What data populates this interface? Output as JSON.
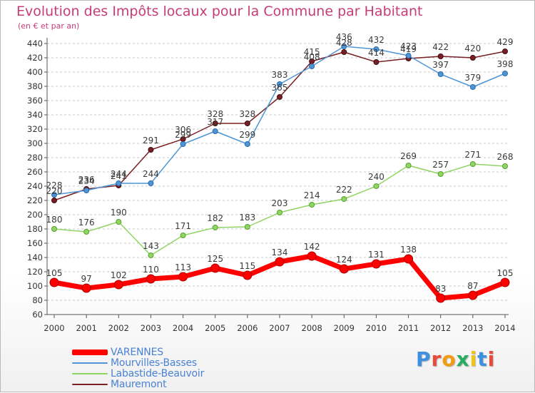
{
  "chart_data": {
    "type": "line",
    "title": "Evolution des Impôts locaux pour la Commune par Habitant",
    "subtitle": "(en € et par an)",
    "xlabel": "",
    "ylabel": "",
    "categories": [
      "2000",
      "2001",
      "2002",
      "2003",
      "2004",
      "2005",
      "2006",
      "2007",
      "2008",
      "2009",
      "2010",
      "2011",
      "2012",
      "2013",
      "2014"
    ],
    "ylim": [
      60,
      440
    ],
    "ytick_step": 20,
    "grid": "y dashed",
    "legend_position": "bottom-left",
    "series": [
      {
        "name": "VARENNES",
        "color": "#ff0000",
        "values": [
          105,
          97,
          102,
          110,
          113,
          125,
          115,
          134,
          142,
          124,
          131,
          138,
          83,
          87,
          105
        ]
      },
      {
        "name": "Mourvilles-Basses",
        "color": "#4f95d6",
        "values": [
          228,
          234,
          244,
          244,
          299,
          317,
          299,
          383,
          408,
          436,
          432,
          423,
          397,
          379,
          398
        ]
      },
      {
        "name": "Labastide-Beauvoir",
        "color": "#8fd563",
        "values": [
          180,
          176,
          190,
          143,
          171,
          182,
          183,
          203,
          214,
          222,
          240,
          269,
          257,
          271,
          268
        ]
      },
      {
        "name": "Mauremont",
        "color": "#7a1f23",
        "values": [
          220,
          236,
          241,
          291,
          306,
          328,
          328,
          365,
          415,
          428,
          414,
          419,
          422,
          420,
          429
        ]
      }
    ]
  },
  "brand": {
    "text": "Proxiti",
    "letter_colors": [
      "#3d8fe0",
      "#e84b3c",
      "#f39c12",
      "#27ae60",
      "#f1c40f",
      "#3d8fe0",
      "#e84b3c"
    ]
  }
}
